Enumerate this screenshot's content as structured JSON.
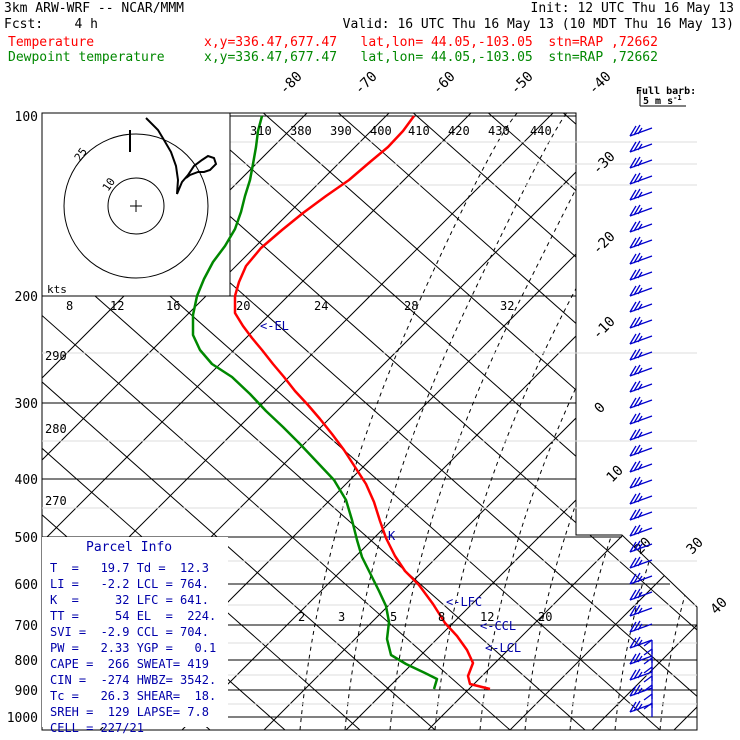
{
  "header": {
    "model": "3km ARW-WRF -- NCAR/MMM",
    "init": "Init: 12 UTC Thu 16 May 13",
    "fcst": "Fcst:    4 h",
    "valid": "Valid: 16 UTC Thu 16 May 13 (10 MDT Thu 16 May 13)",
    "temp_label": "Temperature",
    "temp_loc": "x,y=336.47,677.47   lat,lon= 44.05,-103.05  stn=RAP ,72662",
    "dew_label": "Dewpoint temperature",
    "dew_loc": "x,y=336.47,677.47   lat,lon= 44.05,-103.05  stn=RAP ,72662"
  },
  "colors": {
    "temperature": "#ff0000",
    "dewpoint": "#008800",
    "panel_text": "#0000aa",
    "barbs": "#0000cc",
    "label_red": "#ff0000",
    "label_green": "#008800"
  },
  "full_barb": {
    "line1": "Full barb:",
    "line2": "5 m s",
    "sup": "-1"
  },
  "hodograph": {
    "units": "kts",
    "ring_labels": [
      "10",
      "25"
    ]
  },
  "parcel_info": {
    "title": "Parcel Info",
    "rows": [
      "T  =   19.7 Td =  12.3",
      "LI =   -2.2 LCL = 764.",
      "K  =     32 LFC = 641.",
      "TT =     54 EL  =  224.",
      "SVI =  -2.9 CCL = 704.",
      "PW =   2.33 YGP =   0.1",
      "CAPE =  266 SWEAT= 419",
      "CIN =  -274 HWBZ= 3542.",
      "Tc =   26.3 SHEAR=  18.",
      "SREH =  129 LAPSE= 7.8",
      "CELL = 227/21"
    ]
  },
  "chart_data": {
    "type": "line",
    "title": "",
    "pressure_levels": [
      100,
      200,
      300,
      400,
      500,
      600,
      700,
      800,
      900,
      1000
    ],
    "isotherm_labels": [
      "-80",
      "-70",
      "-60",
      "-50",
      "-40",
      "-30",
      "-20",
      "-10",
      "0",
      "10",
      "20",
      "30",
      "40"
    ],
    "theta_labels": [
      "310",
      "380",
      "390",
      "400",
      "410",
      "420",
      "430",
      "440"
    ],
    "mixing_ratio_labels": [
      "8",
      "12",
      "16",
      "20",
      "24",
      "28",
      "32"
    ],
    "mixing_ratio_labels_low": [
      "2",
      "3",
      "5",
      "8",
      "12",
      "20"
    ],
    "dry_adiabat_labels": [
      "290",
      "280",
      "270"
    ],
    "annotations": [
      "<-EL",
      "<-LFC",
      "<-CCL",
      "<-LCL",
      "K"
    ],
    "series": [
      {
        "name": "Temperature",
        "points": [
          [
            414,
            116
          ],
          [
            403,
            131
          ],
          [
            388,
            147
          ],
          [
            370,
            162
          ],
          [
            349,
            180
          ],
          [
            326,
            196
          ],
          [
            303,
            213
          ],
          [
            282,
            230
          ],
          [
            261,
            248
          ],
          [
            246,
            266
          ],
          [
            239,
            282
          ],
          [
            235,
            296
          ],
          [
            235,
            313
          ],
          [
            243,
            326
          ],
          [
            252,
            338
          ],
          [
            262,
            350
          ],
          [
            273,
            364
          ],
          [
            284,
            377
          ],
          [
            295,
            391
          ],
          [
            308,
            405
          ],
          [
            320,
            419
          ],
          [
            332,
            434
          ],
          [
            344,
            450
          ],
          [
            355,
            467
          ],
          [
            366,
            484
          ],
          [
            374,
            502
          ],
          [
            380,
            521
          ],
          [
            386,
            538
          ],
          [
            395,
            556
          ],
          [
            405,
            571
          ],
          [
            419,
            585
          ],
          [
            433,
            604
          ],
          [
            445,
            623
          ],
          [
            457,
            636
          ],
          [
            467,
            650
          ],
          [
            473,
            663
          ],
          [
            468,
            676
          ],
          [
            470,
            684
          ],
          [
            490,
            689
          ]
        ]
      },
      {
        "name": "Dewpoint temperature",
        "points": [
          [
            262,
            116
          ],
          [
            258,
            131
          ],
          [
            256,
            147
          ],
          [
            253,
            164
          ],
          [
            250,
            180
          ],
          [
            245,
            196
          ],
          [
            241,
            212
          ],
          [
            235,
            229
          ],
          [
            225,
            246
          ],
          [
            213,
            262
          ],
          [
            204,
            279
          ],
          [
            197,
            296
          ],
          [
            193,
            315
          ],
          [
            193,
            335
          ],
          [
            200,
            350
          ],
          [
            212,
            364
          ],
          [
            232,
            377
          ],
          [
            250,
            394
          ],
          [
            266,
            411
          ],
          [
            283,
            427
          ],
          [
            300,
            444
          ],
          [
            317,
            462
          ],
          [
            334,
            480
          ],
          [
            346,
            500
          ],
          [
            352,
            520
          ],
          [
            357,
            540
          ],
          [
            362,
            557
          ],
          [
            371,
            575
          ],
          [
            379,
            591
          ],
          [
            386,
            606
          ],
          [
            389,
            622
          ],
          [
            387,
            639
          ],
          [
            391,
            655
          ],
          [
            406,
            664
          ],
          [
            425,
            673
          ],
          [
            437,
            679
          ],
          [
            434,
            689
          ]
        ]
      }
    ]
  }
}
